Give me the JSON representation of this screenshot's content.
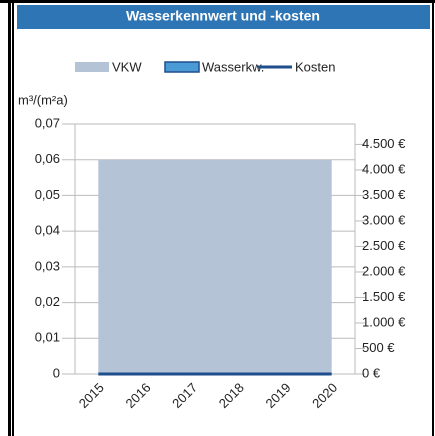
{
  "chart_data": {
    "type": "combo",
    "title": "Wasserkennwert und -kosten",
    "y_label": "m³/(m²a)",
    "categories": [
      "2015",
      "2016",
      "2017",
      "2018",
      "2019",
      "2020"
    ],
    "series": [
      {
        "name": "VKW",
        "kind": "area",
        "color": "#b4c3d6",
        "values": [
          0.06,
          0.06,
          0.06,
          0.06,
          0.06,
          0.06
        ]
      },
      {
        "name": "Wasserkw.",
        "kind": "bar",
        "color": "#4a9ad6",
        "values": [
          0,
          0,
          0,
          0,
          0,
          0
        ]
      },
      {
        "name": "Kosten",
        "kind": "line",
        "color": "#1f4e8c",
        "axis": "y2",
        "values": [
          0,
          0,
          0,
          0,
          0,
          0
        ]
      }
    ],
    "ylim": [
      0,
      0.07
    ],
    "yticks": [
      0,
      {
        "value": 0.01,
        "label": "0,01"
      },
      {
        "value": 0.02,
        "label": "0,02"
      },
      {
        "value": 0.03,
        "label": "0,03"
      },
      {
        "value": 0.04,
        "label": "0,04"
      },
      {
        "value": 0.05,
        "label": "0,05"
      },
      {
        "value": 0.06,
        "label": "0,06"
      },
      {
        "value": 0.07,
        "label": "0,07"
      }
    ],
    "y2lim": [
      0,
      4900
    ],
    "y2ticks": [
      {
        "value": 0,
        "label": "0 €"
      },
      {
        "value": 500,
        "label": "500 €"
      },
      {
        "value": 1000,
        "label": "1.000 €"
      },
      {
        "value": 1500,
        "label": "1.500 €"
      },
      {
        "value": 2000,
        "label": "2.000 €"
      },
      {
        "value": 2500,
        "label": "2.500 €"
      },
      {
        "value": 3000,
        "label": "3.000 €"
      },
      {
        "value": 3500,
        "label": "3.500 €"
      },
      {
        "value": 4000,
        "label": "4.000 €"
      },
      {
        "value": 4500,
        "label": "4.500 €"
      }
    ],
    "grid": true
  }
}
